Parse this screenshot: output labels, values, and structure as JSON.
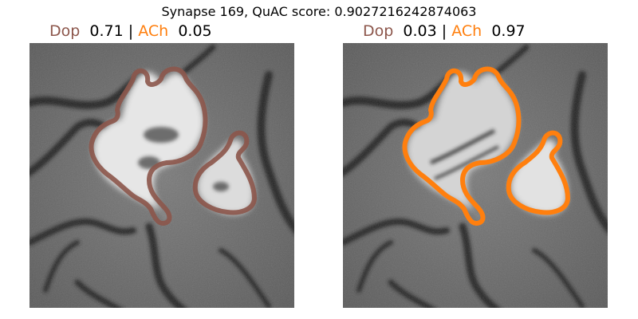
{
  "figure": {
    "title": "Synapse 169, QuAC score: 0.9027216242874063"
  },
  "colors": {
    "dop": "#8c564b",
    "ach": "#ff7f0e",
    "text": "#000000"
  },
  "panels": [
    {
      "dop_label": "Dop",
      "dop_value": "0.71",
      "sep": "|",
      "ach_label": "ACh",
      "ach_value": "0.05",
      "outline_color": "#8c564b"
    },
    {
      "dop_label": "Dop",
      "dop_value": "0.03",
      "sep": "|",
      "ach_label": "ACh",
      "ach_value": "0.97",
      "outline_color": "#ff7f0e"
    }
  ]
}
